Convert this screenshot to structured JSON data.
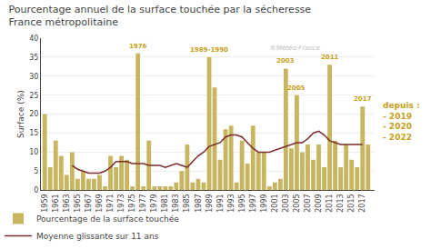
{
  "chart_data": {
    "type": "bar",
    "title": "Pourcentage annuel de la surface touchée par la sécheresse",
    "subtitle": "France métropolitaine",
    "ylabel": "Surface (%)",
    "x": [
      1959,
      1960,
      1961,
      1962,
      1963,
      1964,
      1965,
      1966,
      1967,
      1968,
      1969,
      1970,
      1971,
      1972,
      1973,
      1974,
      1975,
      1976,
      1977,
      1978,
      1979,
      1980,
      1981,
      1982,
      1983,
      1984,
      1985,
      1986,
      1987,
      1988,
      1989,
      1990,
      1991,
      1992,
      1993,
      1994,
      1995,
      1996,
      1997,
      1998,
      1999,
      2000,
      2001,
      2002,
      2003,
      2004,
      2005,
      2006,
      2007,
      2008,
      2009,
      2010,
      2011,
      2012,
      2013,
      2014,
      2015,
      2016,
      2017,
      2018
    ],
    "series": [
      {
        "name": "Pourcentage de la surface touchée",
        "type": "bar",
        "color": "#C8B560",
        "values": [
          20,
          6,
          13,
          9,
          4,
          10,
          3,
          5,
          3,
          3,
          4,
          1,
          9,
          6,
          9,
          8,
          1,
          36,
          1,
          13,
          1,
          1,
          1,
          1,
          2,
          5,
          12,
          2,
          3,
          2,
          35,
          27,
          8,
          16,
          17,
          2,
          13,
          7,
          17,
          10,
          10,
          1,
          2,
          3,
          32,
          11,
          25,
          10,
          12,
          8,
          12,
          6,
          33,
          13,
          6,
          12,
          8,
          6,
          22,
          12
        ]
      },
      {
        "name": "Moyenne glissante sur 11 ans",
        "type": "line",
        "color": "#7B2D2D",
        "values": [
          null,
          null,
          null,
          null,
          null,
          6.5,
          5.5,
          5.0,
          4.5,
          4.5,
          4.5,
          5.0,
          6.0,
          7.5,
          7.5,
          7.5,
          7.0,
          7.0,
          7.0,
          6.5,
          6.5,
          6.5,
          6.0,
          6.5,
          7.0,
          6.5,
          6.0,
          7.5,
          9.0,
          10.0,
          11.5,
          12.0,
          12.5,
          14.0,
          14.5,
          14.5,
          14.0,
          12.5,
          11.0,
          10.0,
          10.0,
          10.0,
          10.5,
          11.0,
          11.5,
          12.0,
          12.5,
          12.5,
          13.5,
          15.0,
          15.5,
          14.5,
          13.0,
          12.5,
          12.0,
          12.0,
          12.0,
          12.0,
          12.0,
          null
        ]
      }
    ],
    "xlim": [
      1958.3,
      2019.2
    ],
    "xticks": [
      1959,
      1961,
      1963,
      1965,
      1967,
      1969,
      1971,
      1973,
      1975,
      1977,
      1979,
      1981,
      1983,
      1985,
      1987,
      1989,
      1991,
      1993,
      1995,
      1997,
      1999,
      2001,
      2003,
      2005,
      2007,
      2009,
      2011,
      2013,
      2015,
      2017
    ],
    "ylim": [
      0,
      40
    ],
    "yticks": [
      0,
      5,
      10,
      15,
      20,
      25,
      30,
      35,
      40
    ],
    "grid": true,
    "legend": "bottom",
    "annotations": [
      {
        "x": 1976,
        "y": 36,
        "text": "1976",
        "color": "#C8A020"
      },
      {
        "x": 1989,
        "y": 35,
        "text": "1989-1990",
        "color": "#C8A020"
      },
      {
        "x": 2003,
        "y": 32,
        "text": "2003",
        "color": "#C8A020"
      },
      {
        "x": 2005,
        "y": 25,
        "text": "2005",
        "color": "#C8A020"
      },
      {
        "x": 2011,
        "y": 33,
        "text": "2011",
        "color": "#C8A020"
      },
      {
        "x": 2017,
        "y": 22,
        "text": "2017",
        "color": "#C8A020"
      }
    ],
    "watermark": {
      "text": "©Météo-France",
      "color": "#BBBBBB"
    },
    "side_note": {
      "title": "depuis :",
      "items": [
        "- 2019",
        "- 2020",
        "- 2022"
      ],
      "color": "#C8A020"
    }
  }
}
